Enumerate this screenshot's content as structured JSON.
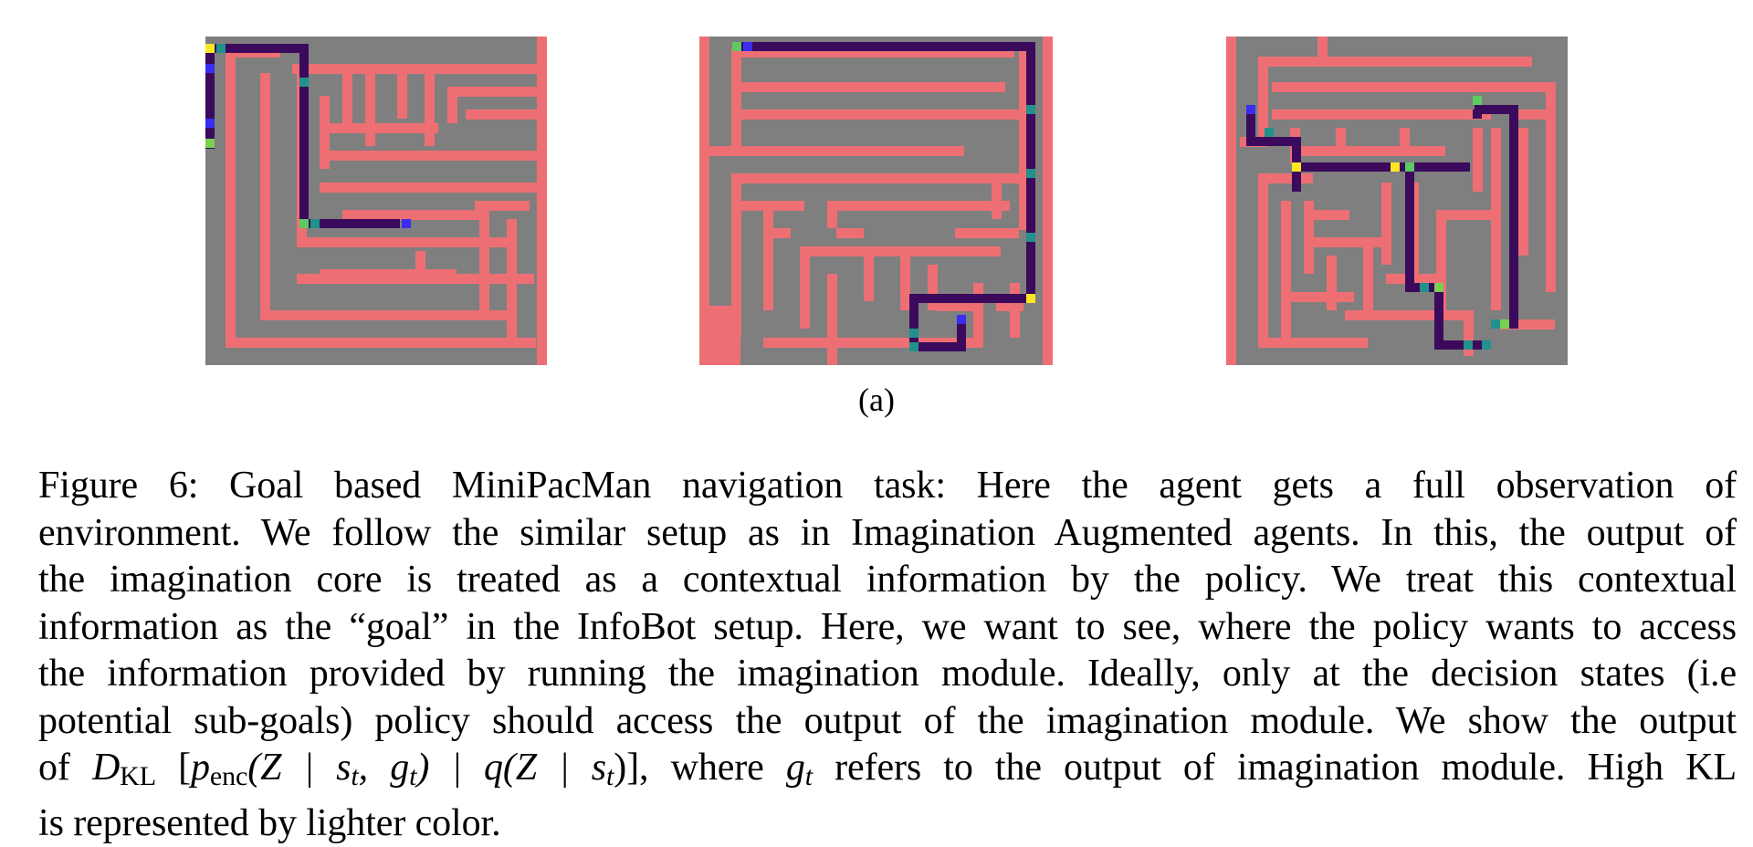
{
  "figure": {
    "subfigure_label": "(a)",
    "mazes": [
      {
        "name": "maze-1",
        "wall_color": "#ee6f73",
        "floor_color": "#7f7f7f"
      },
      {
        "name": "maze-2",
        "wall_color": "#ee6f73",
        "floor_color": "#7f7f7f"
      },
      {
        "name": "maze-3",
        "wall_color": "#ee6f73",
        "floor_color": "#7f7f7f"
      }
    ],
    "kl_colormap": {
      "low": "#3b0a5c",
      "mid": "#21918c",
      "high": "#fde725",
      "mid_blue": "#3a2cf0"
    }
  },
  "caption": {
    "line1": "Figure 6:  Goal based MiniPacMan navigation task:  Here the agent gets a full observation of",
    "line2": "environment. We follow the similar setup as in Imagination Augmented agents. In this, the output of",
    "line3": "the imagination core is treated as a contextual information by the policy. We treat this contextual",
    "line4": "information as the “goal” in the InfoBot setup. Here, we want to see, where the policy wants to access",
    "line5": "the information provided by running the imagination module. Ideally, only at the decision states (i.e",
    "line6": "potential sub-goals) policy should access the output of the imagination module. We show the output",
    "line7_prefix": "of ",
    "line7_math": {
      "D": "D",
      "KL": "KL",
      "open": " [",
      "p": "p",
      "enc": "enc",
      "args1": "(Z | s",
      "t1": "t",
      "comma": ", g",
      "t2": "t",
      "close1": ") | q(Z | s",
      "t3": "t",
      "close2": ")]"
    },
    "line7_mid": ", where ",
    "line7_g": "g",
    "line7_gt": "t",
    "line7_suffix": " refers to the output of imagination module. High KL",
    "line8": "is represented by lighter color."
  }
}
